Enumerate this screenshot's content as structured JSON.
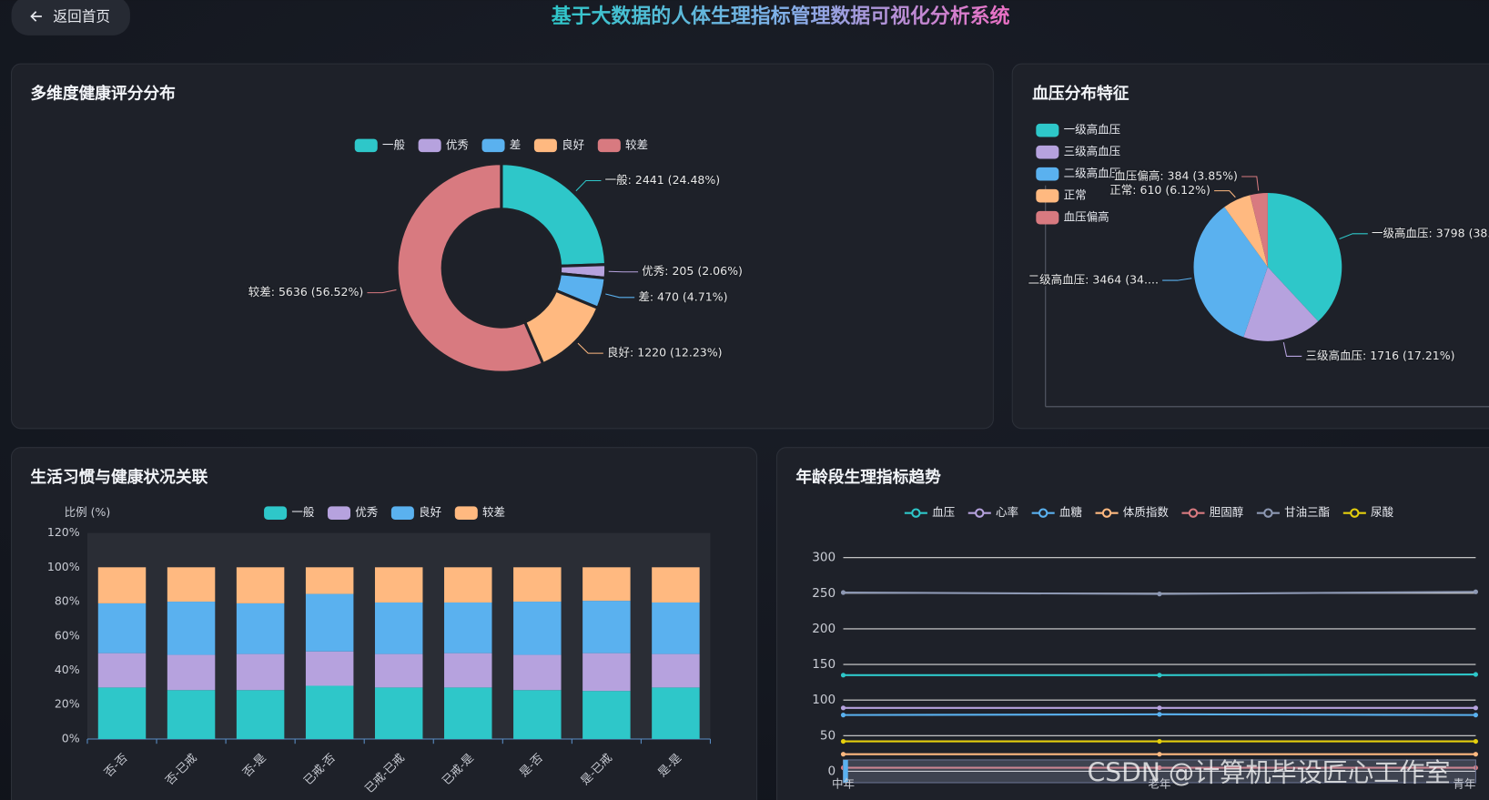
{
  "header": {
    "back_button": "返回首页",
    "title": "基于大数据的人体生理指标管理数据可视化分析系统"
  },
  "chart_data": [
    {
      "type": "donut",
      "title": "多维度健康评分分布",
      "categories": [
        "一般",
        "优秀",
        "差",
        "良好",
        "较差"
      ],
      "values": [
        2441,
        205,
        470,
        1220,
        5636
      ],
      "value_labels": [
        "一般: 2441 (24.48%)",
        "优秀: 205 (2.06%)",
        "差: 470 (4.71%)",
        "良好: 1220 (12.23%)",
        "较差: 5636 (56.52%)"
      ],
      "colors": [
        "#2ec7c9",
        "#b6a2de",
        "#5ab1ef",
        "#ffb980",
        "#d87a80"
      ],
      "legend": "top"
    },
    {
      "type": "pie",
      "title": "血压分布特征",
      "categories": [
        "一级高血压",
        "三级高血压",
        "二级高血压",
        "正常",
        "血压偏高"
      ],
      "values": [
        3798,
        1716,
        3464,
        610,
        384
      ],
      "value_labels": [
        "一级高血压: 3798 (38...",
        "三级高血压: 1716 (17.21%)",
        "二级高血压: 3464 (34....",
        "正常: 610 (6.12%)",
        "血压偏高: 384 (3.85%)"
      ],
      "colors": [
        "#2ec7c9",
        "#b6a2de",
        "#5ab1ef",
        "#ffb980",
        "#d87a80"
      ],
      "legend": "top-left"
    },
    {
      "type": "bar",
      "stacked": true,
      "title": "生活习惯与健康状况关联",
      "y_label": "比例 (%)",
      "categories": [
        "否-否",
        "否-已戒",
        "否-是",
        "已戒-否",
        "已戒-已戒",
        "已戒-是",
        "是-否",
        "是-已戒",
        "是-是"
      ],
      "series": [
        {
          "name": "一般",
          "color": "#2ec7c9",
          "values": [
            30,
            28.5,
            28.5,
            31,
            30,
            30,
            28.5,
            28,
            30
          ]
        },
        {
          "name": "优秀",
          "color": "#b6a2de",
          "values": [
            20,
            20.5,
            21,
            20,
            19.5,
            20,
            20.5,
            22,
            19.5
          ]
        },
        {
          "name": "良好",
          "color": "#5ab1ef",
          "values": [
            29,
            31,
            29.5,
            33.5,
            30,
            29.5,
            31,
            30.5,
            30
          ]
        },
        {
          "name": "较差",
          "color": "#ffb980",
          "values": [
            21,
            20,
            21,
            15.5,
            20.5,
            20.5,
            20,
            19.5,
            20.5
          ]
        }
      ],
      "ylim": [
        0,
        120
      ],
      "yticks": [
        {
          "value": 0,
          "label": "0%"
        },
        {
          "value": 20,
          "label": "20%"
        },
        {
          "value": 40,
          "label": "40%"
        },
        {
          "value": 60,
          "label": "60%"
        },
        {
          "value": 80,
          "label": "80%"
        },
        {
          "value": 100,
          "label": "100%"
        },
        {
          "value": 120,
          "label": "120%"
        }
      ],
      "grid": false,
      "legend": "top"
    },
    {
      "type": "line",
      "title": "年龄段生理指标趋势",
      "categories": [
        "中年",
        "老年",
        "青年"
      ],
      "series": [
        {
          "name": "血压",
          "color": "#2ec7c9",
          "values": [
            135,
            135,
            136
          ]
        },
        {
          "name": "心率",
          "color": "#b6a2de",
          "values": [
            89,
            89,
            89
          ]
        },
        {
          "name": "血糖",
          "color": "#5ab1ef",
          "values": [
            79,
            80,
            79
          ]
        },
        {
          "name": "体质指数",
          "color": "#ffb980",
          "values": [
            24,
            24,
            24
          ]
        },
        {
          "name": "胆固醇",
          "color": "#d87a80",
          "values": [
            5,
            5,
            5
          ]
        },
        {
          "name": "甘油三酯",
          "color": "#8d98b3",
          "values": [
            251,
            249,
            252
          ]
        },
        {
          "name": "尿酸",
          "color": "#e5cf0d",
          "values": [
            42,
            42,
            42
          ]
        }
      ],
      "ylim": [
        0,
        300
      ],
      "yticks": [
        0,
        50,
        100,
        150,
        200,
        250,
        300
      ],
      "grid": true,
      "legend": "top"
    }
  ],
  "watermark": "CSDN @计算机毕设匠心工作室"
}
